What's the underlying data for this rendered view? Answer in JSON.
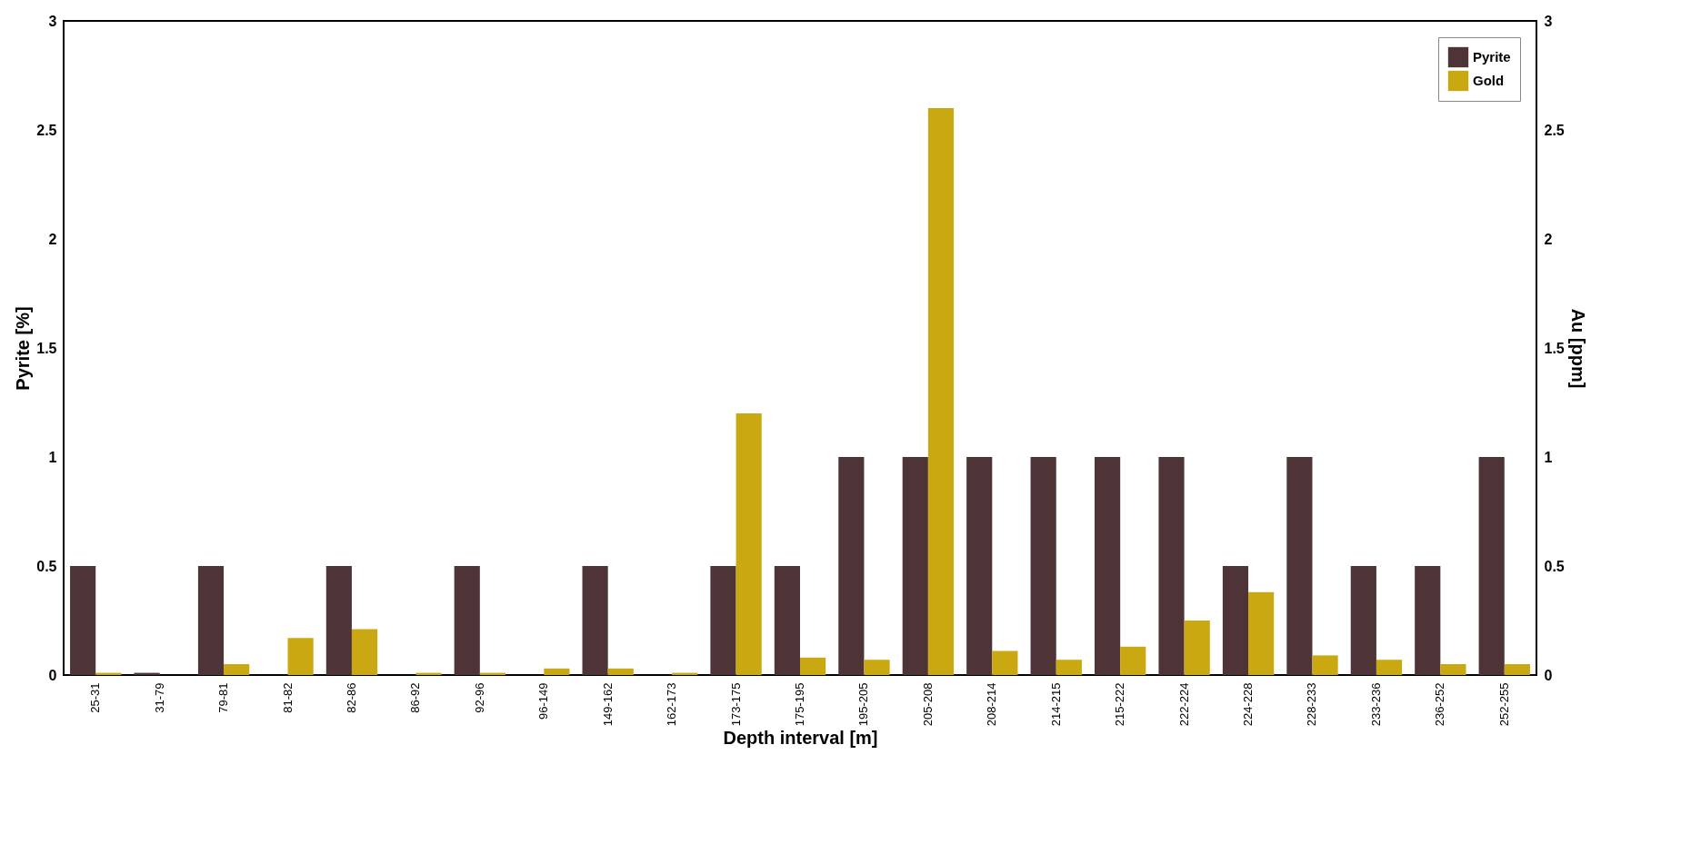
{
  "chart_data": {
    "type": "bar",
    "xlabel": "Depth interval [m]",
    "ylabel": "Pyrite [%]",
    "y2label": "Au [ppm]",
    "categories": [
      "25-31",
      "31-79",
      "79-81",
      "81-82",
      "82-86",
      "86-92",
      "92-96",
      "96-149",
      "149-162",
      "162-173",
      "173-175",
      "175-195",
      "195-205",
      "205-208",
      "208-214",
      "214-215",
      "215-222",
      "222-224",
      "224-228",
      "228-233",
      "233-236",
      "236-252",
      "252-255"
    ],
    "series": [
      {
        "name": "Pyrite",
        "color": "#4e3436",
        "values": [
          0.5,
          0.01,
          0.5,
          0,
          0.5,
          0,
          0.5,
          0,
          0.5,
          0,
          0.5,
          0.5,
          1,
          1,
          1,
          1,
          1,
          1,
          0.5,
          1,
          0.5,
          0.5,
          1
        ]
      },
      {
        "name": "Gold",
        "color": "#c9a812",
        "axis": "y2",
        "values": [
          0.01,
          0,
          0.05,
          0.17,
          0.21,
          0.01,
          0.01,
          0.03,
          0.03,
          0.01,
          1.2,
          0.08,
          0.07,
          2.6,
          0.11,
          0.07,
          0.13,
          0.25,
          0.38,
          0.09,
          0.07,
          0.05,
          0.05
        ]
      }
    ],
    "ylim": [
      0,
      3
    ],
    "yticks": [
      0,
      0.5,
      1,
      1.5,
      2,
      2.5,
      3
    ],
    "y2lim": [
      0,
      3
    ],
    "y2ticks": [
      0,
      0.5,
      1,
      1.5,
      2,
      2.5,
      3
    ],
    "grid": false,
    "legend": "top right"
  }
}
